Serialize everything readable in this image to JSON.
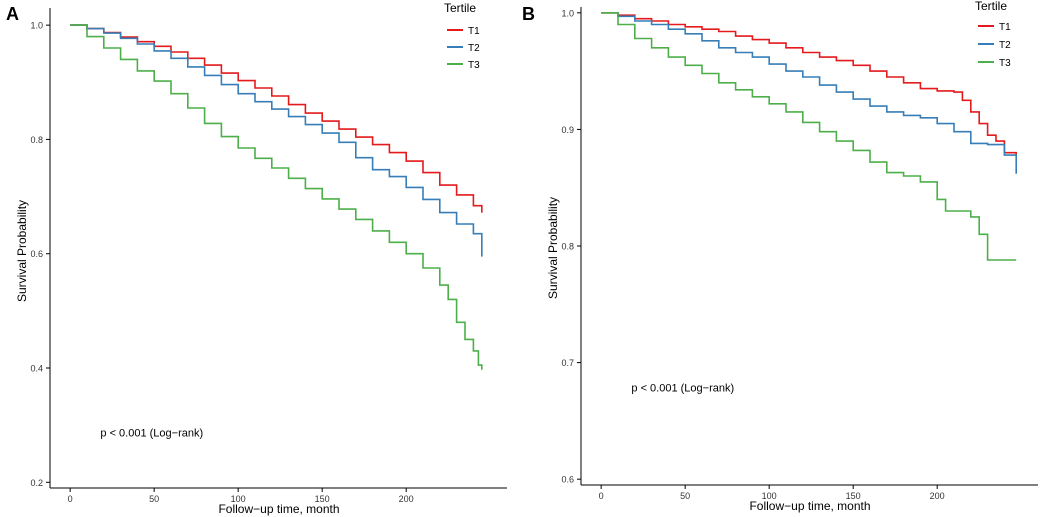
{
  "chart_data": [
    {
      "type": "line",
      "step": true,
      "panel_label": "A",
      "title": "",
      "xlabel": "Follow−up time, month",
      "ylabel": "Survival Probability",
      "xlim": [
        -12,
        260
      ],
      "ylim": [
        0.19,
        1.03
      ],
      "xticks": [
        0,
        50,
        100,
        150,
        200
      ],
      "xtick_labels": [
        "0",
        "50",
        "100",
        "150",
        "200"
      ],
      "yticks": [
        0.2,
        0.4,
        0.6,
        0.8,
        1.0
      ],
      "ytick_labels": [
        "0.2",
        "0.4",
        "0.6",
        "0.8",
        "1.0"
      ],
      "grid": false,
      "legend": {
        "title": "Tertile",
        "placement": "top-right"
      },
      "annotation": "p < 0.001 (Log−rank)",
      "annotation_at": [
        18,
        0.28
      ],
      "series": [
        {
          "name": "T1",
          "color": "#e41a1c",
          "x": [
            0,
            10,
            20,
            30,
            40,
            50,
            60,
            70,
            80,
            90,
            100,
            110,
            120,
            130,
            140,
            150,
            160,
            170,
            180,
            190,
            200,
            210,
            220,
            230,
            240,
            245
          ],
          "y": [
            1.0,
            0.994,
            0.987,
            0.979,
            0.971,
            0.963,
            0.953,
            0.942,
            0.93,
            0.916,
            0.903,
            0.89,
            0.876,
            0.861,
            0.846,
            0.832,
            0.818,
            0.804,
            0.791,
            0.777,
            0.762,
            0.742,
            0.72,
            0.703,
            0.684,
            0.672
          ]
        },
        {
          "name": "T2",
          "color": "#377eb8",
          "x": [
            0,
            10,
            20,
            30,
            40,
            50,
            60,
            70,
            80,
            90,
            100,
            110,
            120,
            130,
            140,
            150,
            160,
            170,
            180,
            190,
            200,
            210,
            220,
            230,
            240,
            245
          ],
          "y": [
            1.0,
            0.994,
            0.986,
            0.977,
            0.967,
            0.955,
            0.942,
            0.927,
            0.912,
            0.896,
            0.88,
            0.866,
            0.853,
            0.84,
            0.826,
            0.811,
            0.795,
            0.768,
            0.747,
            0.735,
            0.716,
            0.695,
            0.672,
            0.652,
            0.635,
            0.595
          ]
        },
        {
          "name": "T3",
          "color": "#4daf4a",
          "x": [
            0,
            10,
            20,
            30,
            40,
            50,
            60,
            70,
            80,
            90,
            100,
            110,
            120,
            130,
            140,
            150,
            160,
            170,
            180,
            190,
            200,
            210,
            220,
            225,
            230,
            235,
            240,
            243,
            245
          ],
          "y": [
            1.0,
            0.98,
            0.96,
            0.94,
            0.92,
            0.902,
            0.88,
            0.855,
            0.828,
            0.805,
            0.785,
            0.767,
            0.75,
            0.732,
            0.714,
            0.696,
            0.678,
            0.66,
            0.64,
            0.62,
            0.6,
            0.575,
            0.545,
            0.52,
            0.48,
            0.45,
            0.43,
            0.405,
            0.397
          ]
        }
      ]
    },
    {
      "type": "line",
      "step": true,
      "panel_label": "B",
      "title": "",
      "xlabel": "Follow−up time, month",
      "ylabel": "Survival Probability",
      "xlim": [
        -12,
        260
      ],
      "ylim": [
        0.595,
        1.005
      ],
      "xticks": [
        0,
        50,
        100,
        150,
        200
      ],
      "xtick_labels": [
        "0",
        "50",
        "100",
        "150",
        "200"
      ],
      "yticks": [
        0.6,
        0.7,
        0.8,
        0.9,
        1.0
      ],
      "ytick_labels": [
        "0.6",
        "0.7",
        "0.8",
        "0.9",
        "1.0"
      ],
      "grid": false,
      "legend": {
        "title": "Tertile",
        "placement": "top-right"
      },
      "annotation": "p < 0.001 (Log−rank)",
      "annotation_at": [
        18,
        0.675
      ],
      "series": [
        {
          "name": "T1",
          "color": "#e41a1c",
          "x": [
            0,
            10,
            20,
            30,
            40,
            50,
            60,
            70,
            80,
            90,
            100,
            110,
            120,
            130,
            140,
            150,
            160,
            170,
            180,
            190,
            200,
            210,
            215,
            220,
            225,
            230,
            235,
            240,
            247
          ],
          "y": [
            1.0,
            0.998,
            0.995,
            0.993,
            0.99,
            0.988,
            0.986,
            0.984,
            0.98,
            0.977,
            0.974,
            0.97,
            0.966,
            0.962,
            0.959,
            0.955,
            0.95,
            0.945,
            0.94,
            0.935,
            0.933,
            0.932,
            0.925,
            0.915,
            0.905,
            0.895,
            0.89,
            0.88,
            0.878
          ]
        },
        {
          "name": "T2",
          "color": "#377eb8",
          "x": [
            0,
            10,
            20,
            30,
            40,
            50,
            60,
            70,
            80,
            90,
            100,
            110,
            120,
            130,
            140,
            150,
            160,
            170,
            180,
            190,
            200,
            210,
            220,
            230,
            240,
            247
          ],
          "y": [
            1.0,
            0.997,
            0.993,
            0.99,
            0.986,
            0.982,
            0.976,
            0.97,
            0.966,
            0.962,
            0.956,
            0.95,
            0.945,
            0.938,
            0.932,
            0.926,
            0.92,
            0.915,
            0.912,
            0.91,
            0.905,
            0.898,
            0.888,
            0.887,
            0.878,
            0.862
          ]
        },
        {
          "name": "T3",
          "color": "#4daf4a",
          "x": [
            0,
            10,
            20,
            30,
            40,
            50,
            60,
            70,
            80,
            90,
            100,
            110,
            120,
            130,
            140,
            150,
            160,
            170,
            180,
            190,
            200,
            205,
            210,
            220,
            225,
            230,
            247
          ],
          "y": [
            1.0,
            0.99,
            0.978,
            0.97,
            0.962,
            0.955,
            0.948,
            0.94,
            0.934,
            0.928,
            0.922,
            0.915,
            0.906,
            0.898,
            0.89,
            0.882,
            0.872,
            0.863,
            0.86,
            0.855,
            0.84,
            0.83,
            0.83,
            0.825,
            0.81,
            0.788,
            0.788
          ]
        }
      ]
    }
  ]
}
